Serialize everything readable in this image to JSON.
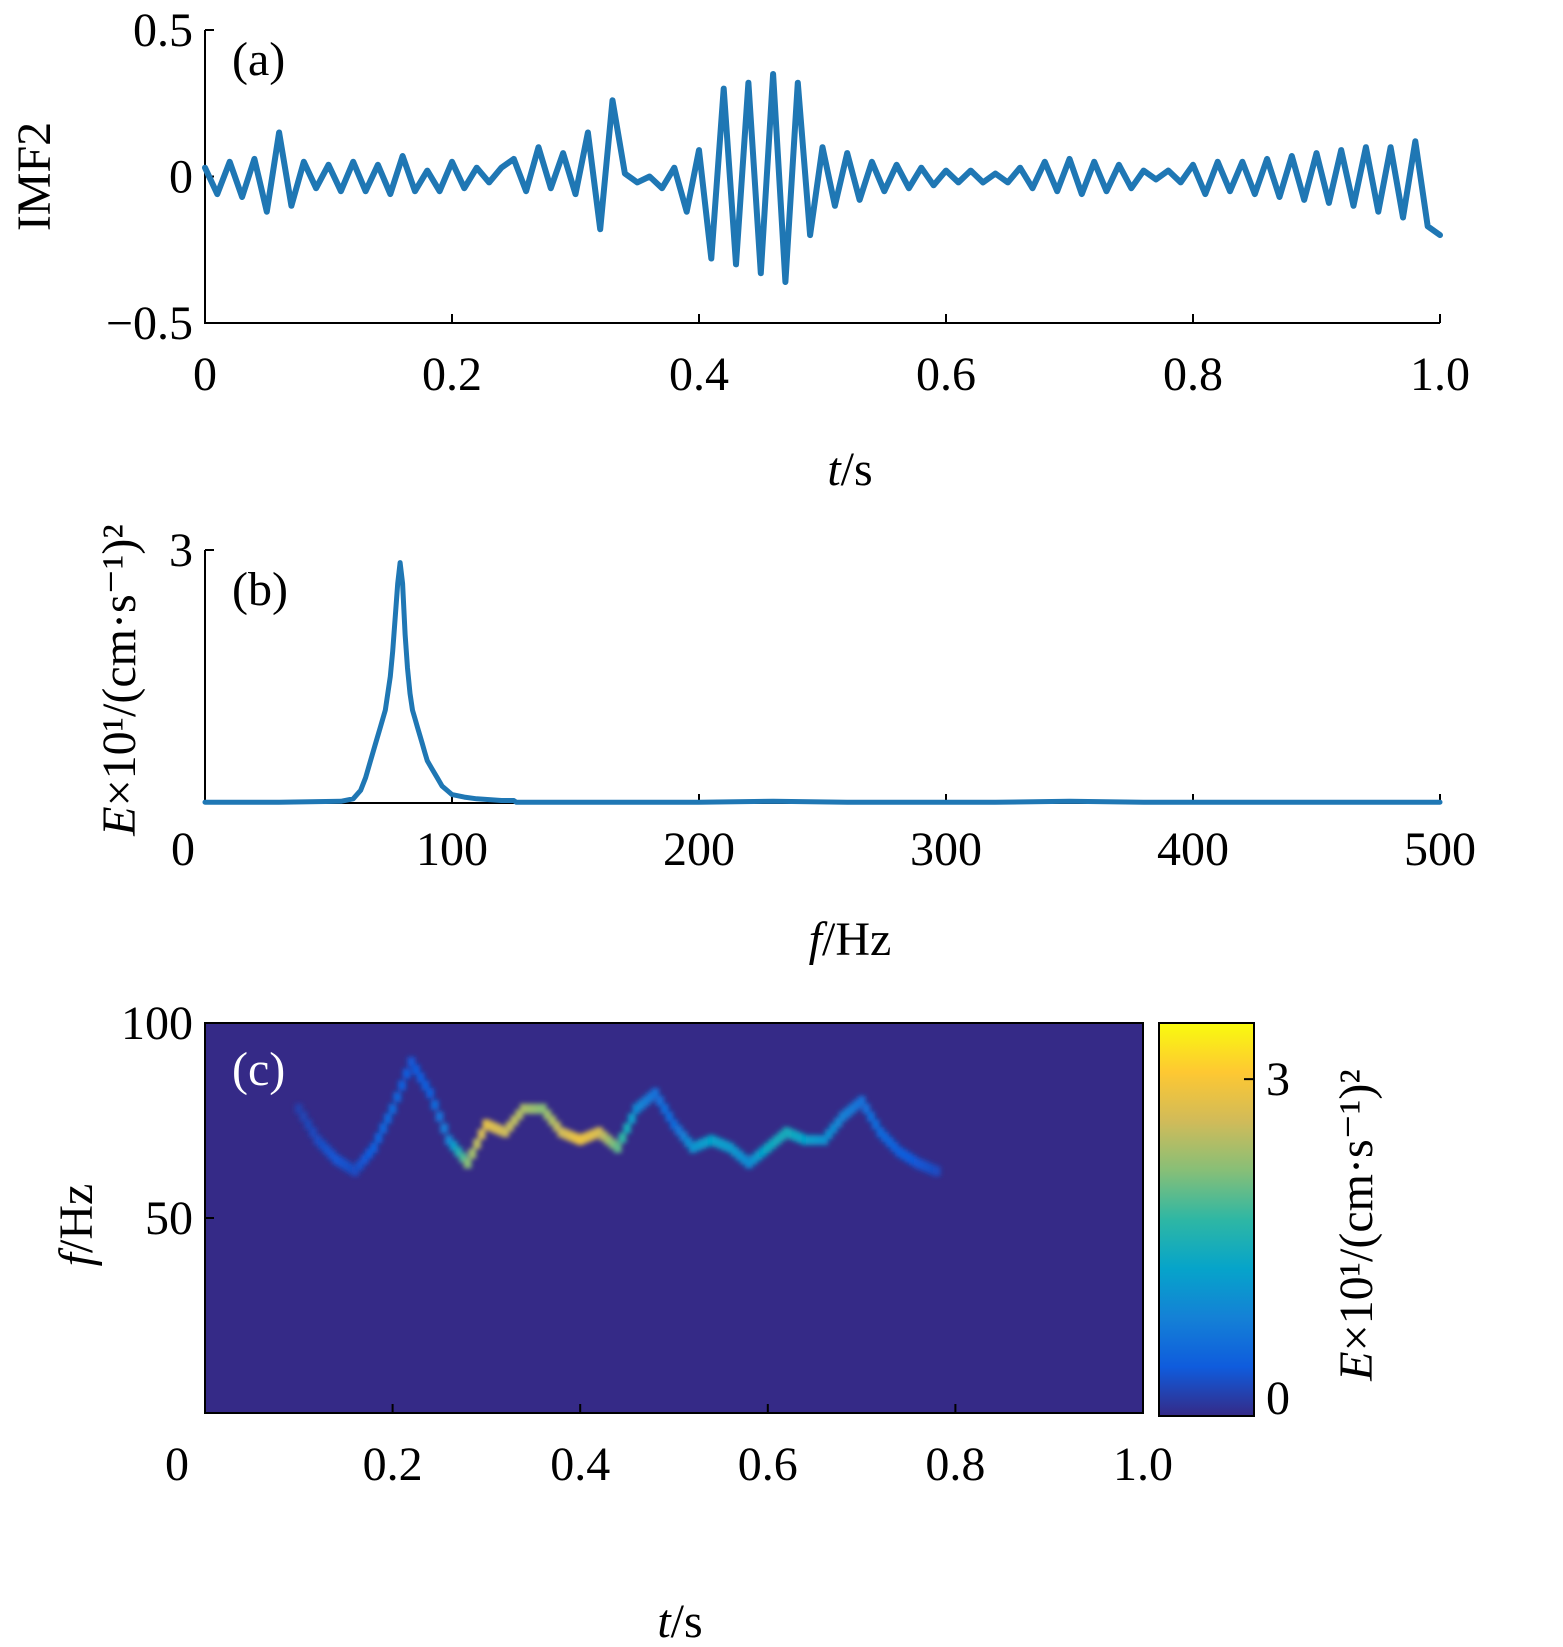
{
  "chart_data": [
    {
      "panel": "(a)",
      "type": "line",
      "ylabel": "IMF2",
      "xlabel_var": "t",
      "xlabel_unit": "s",
      "xlim": [
        0,
        1.0
      ],
      "ylim": [
        -0.5,
        0.5
      ],
      "xticks": [
        "0",
        "0.2",
        "0.4",
        "0.6",
        "0.8",
        "1.0"
      ],
      "yticks": [
        "0.5",
        "0",
        "−0.5"
      ],
      "color": "#1f77b4",
      "series": [
        {
          "x": [
            0,
            0.01,
            0.02,
            0.03,
            0.04,
            0.05,
            0.06,
            0.07,
            0.08,
            0.09,
            0.1,
            0.11,
            0.12,
            0.13,
            0.14,
            0.15,
            0.16,
            0.17,
            0.18,
            0.19,
            0.2,
            0.21,
            0.22,
            0.23,
            0.24,
            0.25,
            0.26,
            0.27,
            0.28,
            0.29,
            0.3,
            0.31,
            0.32,
            0.33,
            0.34,
            0.35,
            0.36,
            0.37,
            0.38,
            0.39,
            0.4,
            0.41,
            0.42,
            0.43,
            0.44,
            0.45,
            0.46,
            0.47,
            0.48,
            0.49,
            0.5,
            0.51,
            0.52,
            0.53,
            0.54,
            0.55,
            0.56,
            0.57,
            0.58,
            0.59,
            0.6,
            0.61,
            0.62,
            0.63,
            0.64,
            0.65,
            0.66,
            0.67,
            0.68,
            0.69,
            0.7,
            0.71,
            0.72,
            0.73,
            0.74,
            0.75,
            0.76,
            0.77,
            0.78,
            0.79,
            0.8,
            0.81,
            0.82,
            0.83,
            0.84,
            0.85,
            0.86,
            0.87,
            0.88,
            0.89,
            0.9,
            0.91,
            0.92,
            0.93,
            0.94,
            0.95,
            0.96,
            0.97,
            0.98,
            0.99,
            1.0
          ],
          "y": [
            0.03,
            -0.06,
            0.05,
            -0.07,
            0.06,
            -0.12,
            0.15,
            -0.1,
            0.05,
            -0.04,
            0.04,
            -0.05,
            0.05,
            -0.05,
            0.04,
            -0.06,
            0.07,
            -0.05,
            0.02,
            -0.05,
            0.05,
            -0.04,
            0.03,
            -0.02,
            0.03,
            0.06,
            -0.05,
            0.1,
            -0.04,
            0.08,
            -0.06,
            0.15,
            -0.18,
            0.26,
            0.01,
            -0.02,
            0.0,
            -0.04,
            0.03,
            -0.12,
            0.09,
            -0.28,
            0.3,
            -0.3,
            0.32,
            -0.33,
            0.35,
            -0.36,
            0.32,
            -0.2,
            0.1,
            -0.1,
            0.08,
            -0.08,
            0.05,
            -0.05,
            0.04,
            -0.04,
            0.03,
            -0.03,
            0.02,
            -0.02,
            0.02,
            -0.02,
            0.01,
            -0.02,
            0.03,
            -0.04,
            0.05,
            -0.05,
            0.06,
            -0.06,
            0.05,
            -0.05,
            0.04,
            -0.04,
            0.02,
            -0.01,
            0.02,
            -0.02,
            0.04,
            -0.06,
            0.05,
            -0.05,
            0.05,
            -0.06,
            0.06,
            -0.07,
            0.07,
            -0.08,
            0.08,
            -0.09,
            0.09,
            -0.1,
            0.1,
            -0.12,
            0.1,
            -0.14,
            0.12,
            -0.17,
            -0.2
          ]
        }
      ]
    },
    {
      "panel": "(b)",
      "type": "line",
      "ylabel_var": "E",
      "ylabel_rest": "×10¹/(cm·s⁻¹)²",
      "xlabel_var": "f",
      "xlabel_unit": "Hz",
      "xlim": [
        0,
        500
      ],
      "ylim": [
        0,
        3
      ],
      "xticks": [
        "0",
        "100",
        "200",
        "300",
        "400",
        "500"
      ],
      "yticks": [
        "3"
      ],
      "color": "#1f77b4",
      "series": [
        {
          "x": [
            0,
            30,
            55,
            60,
            63,
            65,
            67,
            69,
            71,
            73,
            74,
            75,
            76,
            77,
            78,
            79,
            80,
            81,
            82,
            83,
            84,
            85,
            86,
            87,
            88,
            89,
            90,
            92,
            94,
            96,
            98,
            100,
            105,
            110,
            115,
            120,
            125,
            126,
            140,
            160,
            180,
            200,
            230,
            260,
            290,
            320,
            350,
            380,
            410,
            440,
            470,
            500
          ],
          "y": [
            0.01,
            0.01,
            0.02,
            0.05,
            0.15,
            0.3,
            0.5,
            0.7,
            0.9,
            1.1,
            1.3,
            1.5,
            1.8,
            2.2,
            2.6,
            2.85,
            2.6,
            2.0,
            1.6,
            1.3,
            1.1,
            1.0,
            0.9,
            0.8,
            0.7,
            0.6,
            0.5,
            0.4,
            0.3,
            0.2,
            0.15,
            0.1,
            0.07,
            0.05,
            0.04,
            0.03,
            0.03,
            0.01,
            0.01,
            0.01,
            0.01,
            0.01,
            0.02,
            0.01,
            0.01,
            0.01,
            0.02,
            0.01,
            0.01,
            0.01,
            0.01,
            0.01
          ]
        }
      ]
    },
    {
      "panel": "(c)",
      "type": "heatmap",
      "ylabel_var": "f",
      "ylabel_unit": "Hz",
      "xlabel_var": "t",
      "xlabel_unit": "s",
      "xlim": [
        0,
        1.0
      ],
      "ylim": [
        0,
        100
      ],
      "xticks": [
        "0",
        "0.2",
        "0.4",
        "0.6",
        "0.8",
        "1.0"
      ],
      "yticks": [
        "100",
        "50"
      ],
      "background": "#352a87",
      "colorbar": {
        "label_var": "E",
        "label_rest": "×10¹/(cm·s⁻¹)²",
        "range": [
          0,
          3.5
        ],
        "ticks": [
          "3",
          "0"
        ],
        "colors": [
          "#352a87",
          "#0f5cdd",
          "#1481d6",
          "#06a4ca",
          "#2eb7a4",
          "#87bf77",
          "#d1bb59",
          "#fec832",
          "#f9fb0e"
        ]
      },
      "ridge": {
        "t": [
          0.1,
          0.12,
          0.14,
          0.16,
          0.18,
          0.2,
          0.22,
          0.24,
          0.26,
          0.28,
          0.3,
          0.32,
          0.34,
          0.36,
          0.38,
          0.4,
          0.42,
          0.44,
          0.46,
          0.48,
          0.5,
          0.52,
          0.54,
          0.56,
          0.58,
          0.6,
          0.62,
          0.64,
          0.66,
          0.68,
          0.7,
          0.72,
          0.74,
          0.76,
          0.78
        ],
        "f": [
          78,
          70,
          65,
          62,
          68,
          78,
          90,
          82,
          70,
          64,
          74,
          72,
          78,
          78,
          72,
          70,
          72,
          68,
          78,
          82,
          74,
          68,
          70,
          68,
          64,
          68,
          72,
          70,
          70,
          76,
          80,
          72,
          67,
          64,
          62
        ],
        "e": [
          0.2,
          0.3,
          0.4,
          0.3,
          0.5,
          0.6,
          0.4,
          0.5,
          0.9,
          2.2,
          2.8,
          2.6,
          2.4,
          2.2,
          2.6,
          2.9,
          2.7,
          2.0,
          1.0,
          0.7,
          0.6,
          1.1,
          1.3,
          1.2,
          1.0,
          1.4,
          1.5,
          1.3,
          1.1,
          0.9,
          0.7,
          0.6,
          0.5,
          0.4,
          0.3
        ]
      }
    }
  ]
}
